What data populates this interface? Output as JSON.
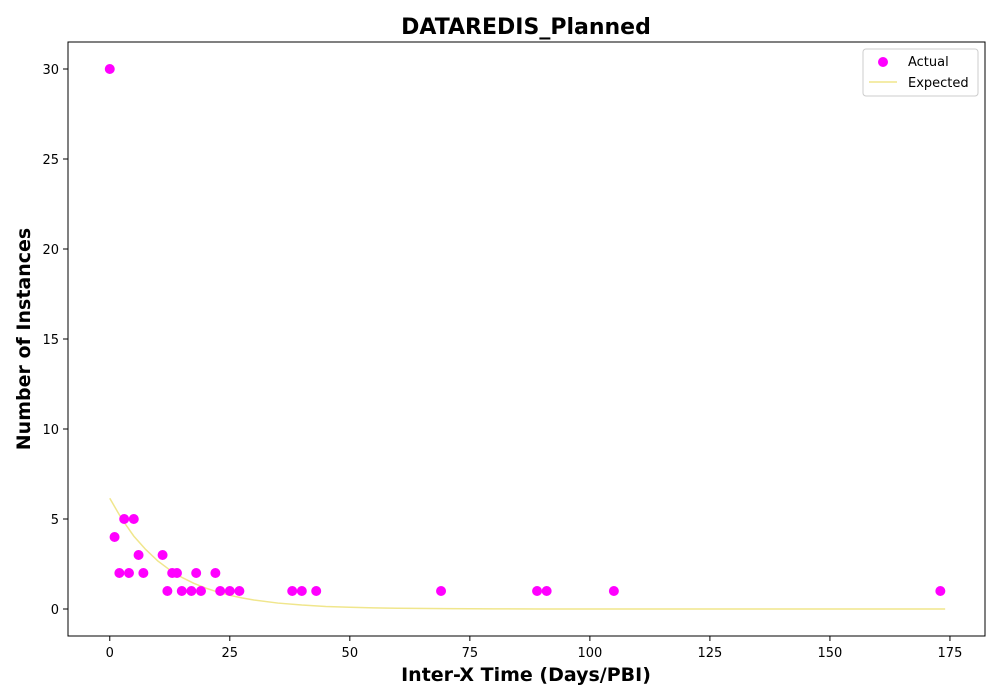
{
  "chart_data": {
    "type": "scatter",
    "title": "DATAREDIS_Planned",
    "xlabel": "Inter-X Time (Days/PBI)",
    "ylabel": "Number of Instances",
    "xlim": [
      -8.7,
      182.3
    ],
    "ylim": [
      -1.5,
      31.5
    ],
    "xticks": [
      0,
      25,
      50,
      75,
      100,
      125,
      150,
      175
    ],
    "yticks": [
      0,
      5,
      10,
      15,
      20,
      25,
      30
    ],
    "grid": false,
    "legend_position": "top-right",
    "series": [
      {
        "name": "Actual",
        "kind": "scatter",
        "color": "#ff00ff",
        "points": [
          [
            0,
            30
          ],
          [
            1,
            4
          ],
          [
            2,
            2
          ],
          [
            3,
            5
          ],
          [
            4,
            2
          ],
          [
            5,
            5
          ],
          [
            6,
            3
          ],
          [
            7,
            2
          ],
          [
            11,
            3
          ],
          [
            12,
            1
          ],
          [
            13,
            2
          ],
          [
            14,
            2
          ],
          [
            15,
            1
          ],
          [
            17,
            1
          ],
          [
            18,
            2
          ],
          [
            19,
            1
          ],
          [
            22,
            2
          ],
          [
            23,
            1
          ],
          [
            25,
            1
          ],
          [
            27,
            1
          ],
          [
            38,
            1
          ],
          [
            40,
            1
          ],
          [
            43,
            1
          ],
          [
            69,
            1
          ],
          [
            89,
            1
          ],
          [
            91,
            1
          ],
          [
            105,
            1
          ],
          [
            173,
            1
          ]
        ]
      },
      {
        "name": "Expected",
        "kind": "line",
        "color": "#f0e68c",
        "points": [
          [
            0,
            6.15
          ],
          [
            2.5,
            5.0
          ],
          [
            5,
            4.05
          ],
          [
            7.5,
            3.3
          ],
          [
            10,
            2.67
          ],
          [
            12.5,
            2.17
          ],
          [
            15,
            1.76
          ],
          [
            17.5,
            1.43
          ],
          [
            20,
            1.16
          ],
          [
            22.5,
            0.94
          ],
          [
            25,
            0.76
          ],
          [
            27.5,
            0.62
          ],
          [
            30,
            0.5
          ],
          [
            35,
            0.33
          ],
          [
            40,
            0.22
          ],
          [
            45,
            0.14
          ],
          [
            50,
            0.095
          ],
          [
            55,
            0.062
          ],
          [
            60,
            0.041
          ],
          [
            70,
            0.018
          ],
          [
            80,
            0.008
          ],
          [
            90,
            0.003
          ],
          [
            100,
            0.001
          ],
          [
            125,
            0.0
          ],
          [
            150,
            0.0
          ],
          [
            174,
            0.0
          ]
        ]
      }
    ]
  }
}
